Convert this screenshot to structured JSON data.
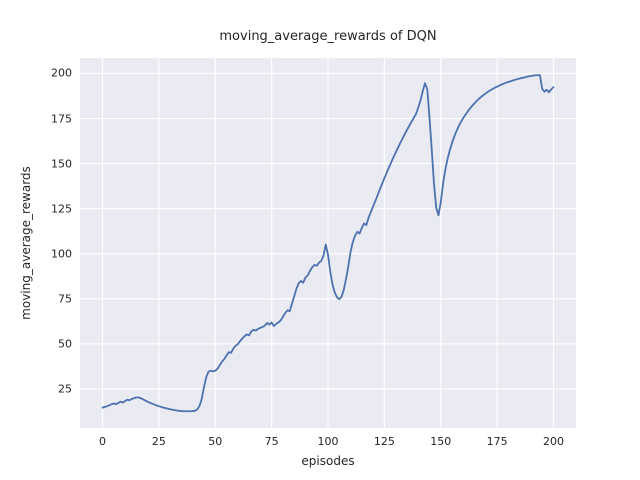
{
  "figure": {
    "title": "moving_average_rewards of DQN",
    "xlabel": "episodes",
    "ylabel": "moving_average_rewards"
  },
  "chart_data": {
    "type": "line",
    "title": "moving_average_rewards of DQN",
    "xlabel": "episodes",
    "ylabel": "moving_average_rewards",
    "x_ticks": [
      0,
      25,
      50,
      75,
      100,
      125,
      150,
      175,
      200
    ],
    "y_ticks": [
      25,
      50,
      75,
      100,
      125,
      150,
      175,
      200
    ],
    "xlim": [
      -10,
      210
    ],
    "ylim": [
      3.3,
      208.6
    ],
    "grid": true,
    "legend_position": "none",
    "style": {
      "line_color": "#4C72B0",
      "line_width": 1.8,
      "axes_background": "#EAEAF2",
      "grid_color": "#FFFFFF",
      "text_color": "#262626",
      "figure_background": "#FFFFFF"
    },
    "series": [
      {
        "name": "moving_average_rewards",
        "points": [
          [
            0,
            14.6
          ],
          [
            1,
            15.0
          ],
          [
            2,
            15.4
          ],
          [
            3,
            15.9
          ],
          [
            4,
            16.5
          ],
          [
            5,
            16.9
          ],
          [
            6,
            16.5
          ],
          [
            7,
            17.2
          ],
          [
            8,
            17.9
          ],
          [
            9,
            17.4
          ],
          [
            10,
            18.3
          ],
          [
            11,
            19.0
          ],
          [
            12,
            18.7
          ],
          [
            13,
            19.4
          ],
          [
            14,
            19.9
          ],
          [
            15,
            20.2
          ],
          [
            16,
            20.3
          ],
          [
            17,
            19.8
          ],
          [
            18,
            19.2
          ],
          [
            19,
            18.5
          ],
          [
            20,
            17.9
          ],
          [
            21,
            17.3
          ],
          [
            22,
            16.8
          ],
          [
            23,
            16.3
          ],
          [
            24,
            15.8
          ],
          [
            25,
            15.4
          ],
          [
            26,
            15.0
          ],
          [
            27,
            14.6
          ],
          [
            28,
            14.3
          ],
          [
            29,
            14.0
          ],
          [
            30,
            13.7
          ],
          [
            31,
            13.4
          ],
          [
            32,
            13.2
          ],
          [
            33,
            13.0
          ],
          [
            34,
            12.8
          ],
          [
            35,
            12.7
          ],
          [
            36,
            12.6
          ],
          [
            37,
            12.6
          ],
          [
            38,
            12.6
          ],
          [
            39,
            12.6
          ],
          [
            40,
            12.7
          ],
          [
            41,
            12.9
          ],
          [
            42,
            13.6
          ],
          [
            43,
            15.5
          ],
          [
            44,
            19.5
          ],
          [
            45,
            26.0
          ],
          [
            46,
            31.5
          ],
          [
            47,
            34.6
          ],
          [
            48,
            35.1
          ],
          [
            49,
            34.7
          ],
          [
            50,
            35.1
          ],
          [
            51,
            36.2
          ],
          [
            52,
            38.2
          ],
          [
            53,
            40.1
          ],
          [
            54,
            41.6
          ],
          [
            55,
            43.5
          ],
          [
            56,
            45.4
          ],
          [
            57,
            45.0
          ],
          [
            58,
            47.3
          ],
          [
            59,
            48.9
          ],
          [
            60,
            49.8
          ],
          [
            61,
            51.5
          ],
          [
            62,
            53.0
          ],
          [
            63,
            54.3
          ],
          [
            64,
            55.2
          ],
          [
            65,
            54.7
          ],
          [
            66,
            56.9
          ],
          [
            67,
            57.8
          ],
          [
            68,
            57.4
          ],
          [
            69,
            58.3
          ],
          [
            70,
            58.9
          ],
          [
            71,
            59.4
          ],
          [
            72,
            60.1
          ],
          [
            73,
            61.6
          ],
          [
            74,
            60.7
          ],
          [
            75,
            61.8
          ],
          [
            76,
            59.9
          ],
          [
            77,
            61.0
          ],
          [
            78,
            61.9
          ],
          [
            79,
            63.0
          ],
          [
            80,
            64.9
          ],
          [
            81,
            67.1
          ],
          [
            82,
            68.6
          ],
          [
            83,
            68.1
          ],
          [
            84,
            72.2
          ],
          [
            85,
            76.3
          ],
          [
            86,
            80.6
          ],
          [
            87,
            83.6
          ],
          [
            88,
            84.9
          ],
          [
            89,
            83.9
          ],
          [
            90,
            86.8
          ],
          [
            91,
            88.0
          ],
          [
            92,
            90.5
          ],
          [
            93,
            92.5
          ],
          [
            94,
            93.8
          ],
          [
            95,
            93.3
          ],
          [
            96,
            95.0
          ],
          [
            97,
            96.0
          ],
          [
            98,
            99.0
          ],
          [
            99,
            105.1
          ],
          [
            100,
            99.5
          ],
          [
            101,
            90.0
          ],
          [
            102,
            83.0
          ],
          [
            103,
            78.5
          ],
          [
            104,
            75.8
          ],
          [
            105,
            74.8
          ],
          [
            106,
            76.1
          ],
          [
            107,
            80.0
          ],
          [
            108,
            86.0
          ],
          [
            109,
            93.0
          ],
          [
            110,
            101.0
          ],
          [
            111,
            106.5
          ],
          [
            112,
            110.0
          ],
          [
            113,
            112.2
          ],
          [
            114,
            111.2
          ],
          [
            115,
            114.3
          ],
          [
            116,
            116.8
          ],
          [
            117,
            115.9
          ],
          [
            118,
            120.0
          ],
          [
            119,
            123.2
          ],
          [
            120,
            126.2
          ],
          [
            121,
            129.3
          ],
          [
            122,
            132.5
          ],
          [
            123,
            135.7
          ],
          [
            124,
            138.8
          ],
          [
            125,
            141.9
          ],
          [
            126,
            144.9
          ],
          [
            127,
            147.8
          ],
          [
            128,
            150.6
          ],
          [
            129,
            153.4
          ],
          [
            130,
            156.1
          ],
          [
            131,
            158.7
          ],
          [
            132,
            161.3
          ],
          [
            133,
            163.8
          ],
          [
            134,
            166.2
          ],
          [
            135,
            168.6
          ],
          [
            136,
            170.9
          ],
          [
            137,
            173.1
          ],
          [
            138,
            175.3
          ],
          [
            139,
            177.4
          ],
          [
            140,
            181.0
          ],
          [
            141,
            185.0
          ],
          [
            142,
            190.0
          ],
          [
            143,
            194.6
          ],
          [
            144,
            191.5
          ],
          [
            145,
            176.0
          ],
          [
            146,
            158.0
          ],
          [
            147,
            139.0
          ],
          [
            148,
            125.5
          ],
          [
            149,
            121.3
          ],
          [
            150,
            128.5
          ],
          [
            151,
            138.5
          ],
          [
            152,
            146.5
          ],
          [
            153,
            152.5
          ],
          [
            154,
            157.3
          ],
          [
            155,
            161.4
          ],
          [
            156,
            165.0
          ],
          [
            157,
            168.1
          ],
          [
            158,
            170.8
          ],
          [
            159,
            173.2
          ],
          [
            160,
            175.3
          ],
          [
            161,
            177.2
          ],
          [
            162,
            179.0
          ],
          [
            163,
            180.6
          ],
          [
            164,
            182.1
          ],
          [
            165,
            183.5
          ],
          [
            166,
            184.8
          ],
          [
            167,
            186.0
          ],
          [
            168,
            187.1
          ],
          [
            169,
            188.1
          ],
          [
            170,
            189.0
          ],
          [
            171,
            189.9
          ],
          [
            172,
            190.7
          ],
          [
            173,
            191.4
          ],
          [
            174,
            192.1
          ],
          [
            175,
            192.7
          ],
          [
            176,
            193.3
          ],
          [
            177,
            193.9
          ],
          [
            178,
            194.4
          ],
          [
            179,
            194.9
          ],
          [
            180,
            195.3
          ],
          [
            181,
            195.7
          ],
          [
            182,
            196.1
          ],
          [
            183,
            196.5
          ],
          [
            184,
            196.9
          ],
          [
            185,
            197.2
          ],
          [
            186,
            197.5
          ],
          [
            187,
            197.8
          ],
          [
            188,
            198.1
          ],
          [
            189,
            198.4
          ],
          [
            190,
            198.6
          ],
          [
            191,
            198.8
          ],
          [
            192,
            199.0
          ],
          [
            193,
            199.1
          ],
          [
            194,
            199.1
          ],
          [
            195,
            191.5
          ],
          [
            196,
            189.9
          ],
          [
            197,
            191.0
          ],
          [
            198,
            189.6
          ],
          [
            199,
            191.2
          ],
          [
            200,
            192.4
          ]
        ]
      }
    ]
  }
}
